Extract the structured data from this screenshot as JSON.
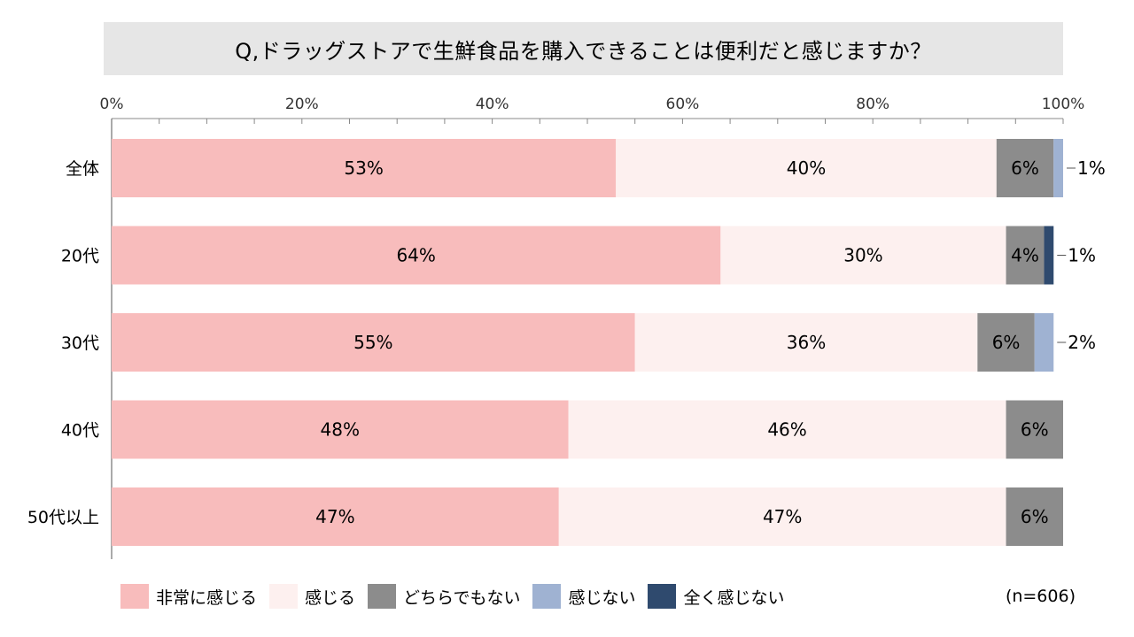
{
  "chart_data": {
    "type": "bar",
    "orientation": "horizontal",
    "stacked": true,
    "title": "Q,ドラッグストアで生鮮食品を購入できることは便利だと感じますか？",
    "categories": [
      "全体",
      "20代",
      "30代",
      "40代",
      "50代以上"
    ],
    "series": [
      {
        "name": "非常に感じる",
        "color": "#f8bcbc",
        "values": [
          53,
          64,
          55,
          48,
          47
        ],
        "labels": [
          "53%",
          "64%",
          "55%",
          "48%",
          "47%"
        ]
      },
      {
        "name": "感じる",
        "color": "#fdf0ef",
        "values": [
          40,
          30,
          36,
          46,
          47
        ],
        "labels": [
          "40%",
          "30%",
          "36%",
          "46%",
          "47%"
        ]
      },
      {
        "name": "どちらでもない",
        "color": "#8c8c8c",
        "values": [
          6,
          4,
          6,
          6,
          6
        ],
        "labels": [
          "6%",
          "4%",
          "6%",
          "6%",
          "6%"
        ]
      },
      {
        "name": "感じない",
        "color": "#9fb2d2",
        "values": [
          1,
          0,
          2,
          0,
          0
        ],
        "labels": [
          "1%",
          "",
          "2%",
          "",
          ""
        ]
      },
      {
        "name": "全く感じない",
        "color": "#2f4a6e",
        "values": [
          0,
          1,
          0,
          0,
          0
        ],
        "labels": [
          "",
          "1%",
          "",
          "",
          ""
        ]
      }
    ],
    "outside_labels": [
      "1%",
      "1%",
      "2%",
      "",
      ""
    ],
    "xlim": [
      0,
      100
    ],
    "x_ticks": [
      0,
      20,
      40,
      60,
      80,
      100
    ],
    "x_tick_labels": [
      "0%",
      "20%",
      "40%",
      "60%",
      "80%",
      "100%"
    ],
    "x_axis_position": "top",
    "grid": false,
    "legend_position": "bottom",
    "sample_size": "(n=606)"
  }
}
